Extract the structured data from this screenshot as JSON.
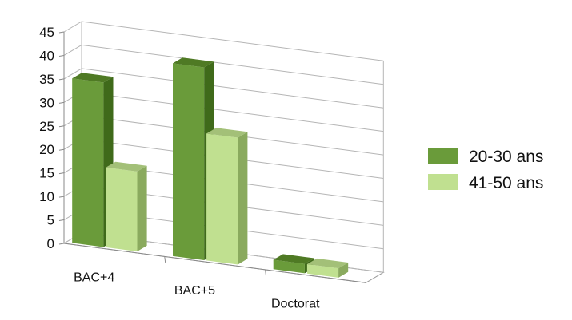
{
  "chart_data": {
    "type": "bar",
    "categories": [
      "BAC+4",
      "BAC+5",
      "Doctorat"
    ],
    "series": [
      {
        "name": "20-30 ans",
        "values": [
          35,
          41,
          2
        ]
      },
      {
        "name": "41-50 ans",
        "values": [
          17,
          27,
          2
        ]
      }
    ],
    "ylim": [
      0,
      45
    ],
    "yticks": [
      "0",
      "5",
      "10",
      "15",
      "20",
      "25",
      "30",
      "35",
      "40",
      "45"
    ],
    "legend_position": "right",
    "grid": true,
    "style": "3d-clustered-column",
    "colors": {
      "series_1": {
        "front": "#6a9b3a",
        "side": "#3f6a1a",
        "top": "#4f7a24"
      },
      "series_2": {
        "front": "#c0e090",
        "side": "#8aaa5e",
        "top": "#a3c078"
      },
      "gridline": "#b5b5b5",
      "floor": "#ffffff"
    }
  }
}
